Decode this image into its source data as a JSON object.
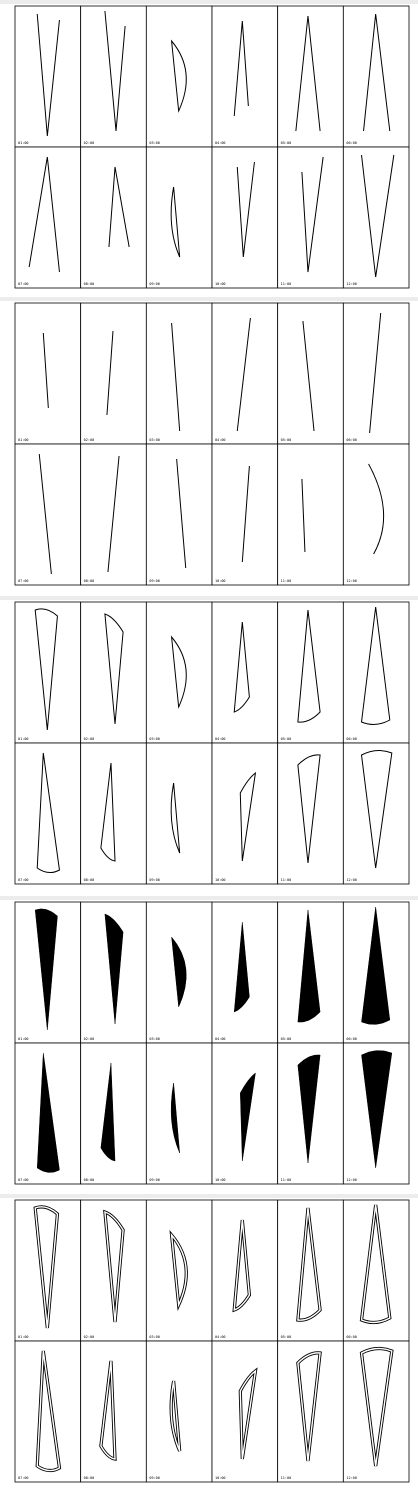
{
  "panels": [
    {
      "labels": [
        "01:00",
        "02:00",
        "03:00",
        "04:00",
        "05:00",
        "06:00",
        "07:00",
        "08:00",
        "09:00",
        "10:00",
        "11:00",
        "12:00"
      ]
    },
    {
      "labels": [
        "01:00",
        "02:00",
        "03:00",
        "04:00",
        "05:00",
        "06:00",
        "07:00",
        "08:00",
        "09:00",
        "10:00",
        "11:00",
        "12:00"
      ]
    },
    {
      "labels": [
        "01:00",
        "02:00",
        "03:00",
        "04:00",
        "05:00",
        "06:00",
        "07:00",
        "08:00",
        "09:00",
        "10:00",
        "11:00",
        "12:00"
      ]
    },
    {
      "labels": [
        "01:00",
        "02:00",
        "03:00",
        "04:00",
        "05:00",
        "06:00",
        "07:00",
        "08:00",
        "09:00",
        "10:00",
        "11:00",
        "12:00"
      ]
    },
    {
      "labels": [
        "01:00",
        "02:00",
        "03:00",
        "04:00",
        "05:00",
        "06:00",
        "07:00",
        "08:00",
        "09:00",
        "10:00",
        "11:00",
        "12:00"
      ]
    }
  ]
}
